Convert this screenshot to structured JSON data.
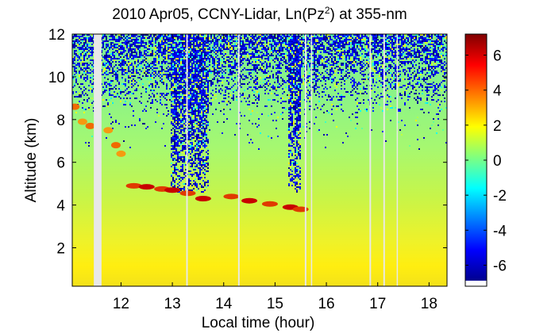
{
  "chart_data": {
    "type": "heatmap",
    "title_main": "2010 Apr05, CCNY-Lidar, Ln(Pz",
    "title_sup": "2",
    "title_tail": ") at 355-nm",
    "xlabel": "Local time (hour)",
    "ylabel": "Altitude (km)",
    "xlim": [
      11.05,
      18.35
    ],
    "ylim": [
      0.2,
      12
    ],
    "x_ticks": [
      12,
      13,
      14,
      15,
      16,
      17,
      18
    ],
    "x_tick_labels": [
      "12",
      "13",
      "14",
      "15",
      "16",
      "17",
      "18"
    ],
    "y_ticks": [
      2,
      4,
      6,
      8,
      10,
      12
    ],
    "y_tick_labels": [
      "2",
      "4",
      "6",
      "8",
      "10",
      "12"
    ],
    "colorbar": {
      "range": [
        -7.2,
        7.2
      ],
      "ticks": [
        6,
        4,
        2,
        0,
        -2,
        -4,
        -6
      ],
      "tick_labels": [
        "6",
        "4",
        "2",
        "0",
        "-2",
        "-4",
        "-6"
      ],
      "colormap": "jet"
    },
    "data_gaps_hours": [
      [
        11.47,
        11.62
      ],
      [
        13.27,
        13.3
      ],
      [
        14.28,
        14.31
      ],
      [
        15.58,
        15.61
      ],
      [
        15.7,
        15.72
      ],
      [
        16.84,
        16.87
      ],
      [
        17.11,
        17.14
      ],
      [
        17.37,
        17.39
      ]
    ],
    "aerosol_layer": [
      {
        "x": 12.25,
        "y": 4.9
      },
      {
        "x": 12.5,
        "y": 4.85
      },
      {
        "x": 12.8,
        "y": 4.75
      },
      {
        "x": 13.0,
        "y": 4.7
      },
      {
        "x": 13.3,
        "y": 4.55
      },
      {
        "x": 13.6,
        "y": 4.3
      },
      {
        "x": 14.15,
        "y": 4.4
      },
      {
        "x": 14.5,
        "y": 4.2
      },
      {
        "x": 14.9,
        "y": 4.05
      },
      {
        "x": 15.3,
        "y": 3.9
      },
      {
        "x": 15.5,
        "y": 3.8
      }
    ],
    "elevated_layer": [
      {
        "x": 11.1,
        "y": 8.6
      },
      {
        "x": 11.25,
        "y": 7.9
      },
      {
        "x": 11.4,
        "y": 7.7
      },
      {
        "x": 11.75,
        "y": 7.5
      },
      {
        "x": 11.9,
        "y": 6.8
      },
      {
        "x": 12.0,
        "y": 6.4
      }
    ]
  }
}
